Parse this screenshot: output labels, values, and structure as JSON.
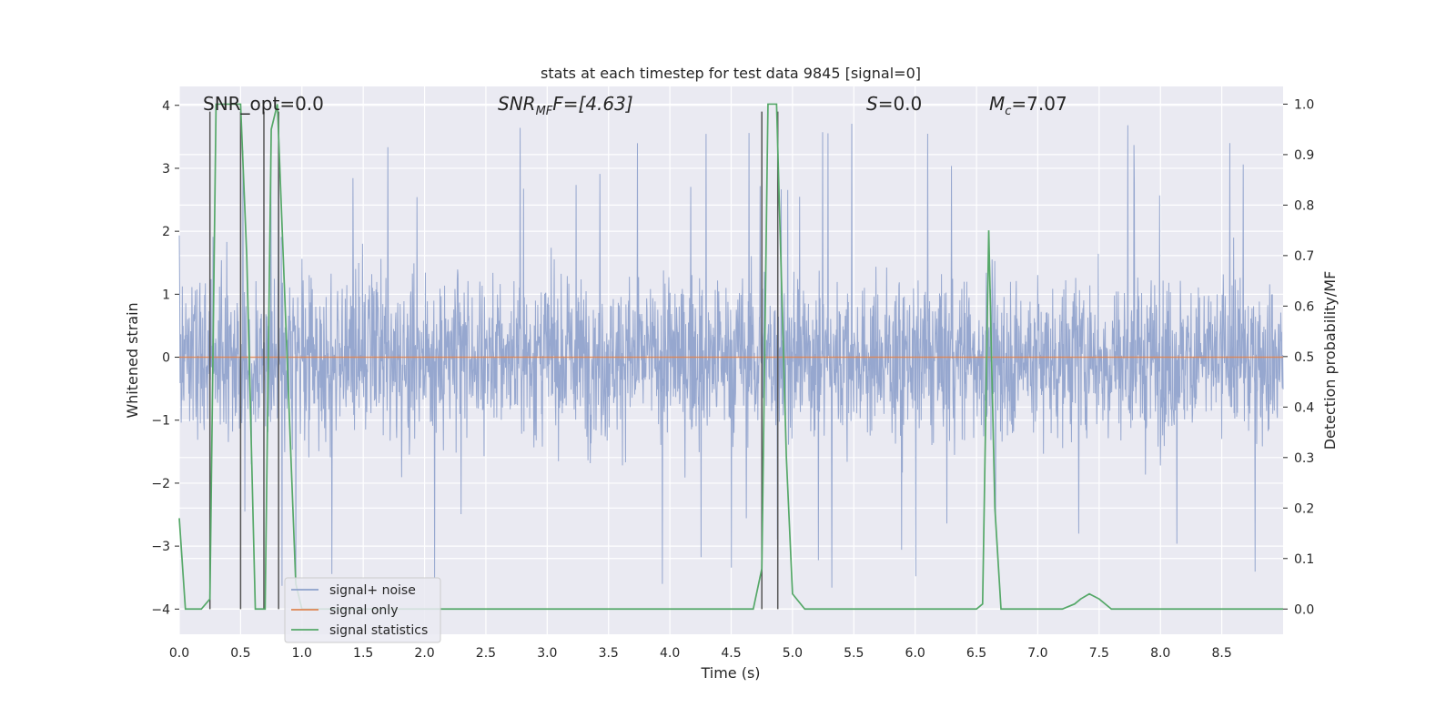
{
  "chart_data": {
    "type": "line",
    "title": "stats at each timestep for test data 9845 [signal=0]",
    "xlabel": "Time (s)",
    "ylabel": "Whitened strain",
    "ylabel_right": "Detection probability/MF",
    "xlim": [
      0.0,
      9.0
    ],
    "ylim": [
      -4.4,
      4.3
    ],
    "ylim_right": [
      -0.05,
      1.035
    ],
    "xticks": [
      0.0,
      0.5,
      1.0,
      1.5,
      2.0,
      2.5,
      3.0,
      3.5,
      4.0,
      4.5,
      5.0,
      5.5,
      6.0,
      6.5,
      7.0,
      7.5,
      8.0,
      8.5
    ],
    "xtick_labels": [
      "0.0",
      "0.5",
      "1.0",
      "1.5",
      "2.0",
      "2.5",
      "3.0",
      "3.5",
      "4.0",
      "4.5",
      "5.0",
      "5.5",
      "6.0",
      "6.5",
      "7.0",
      "7.5",
      "8.0",
      "8.5"
    ],
    "yticks": [
      -4,
      -3,
      -2,
      -1,
      0,
      1,
      2,
      3,
      4
    ],
    "ytick_labels": [
      "−4",
      "−3",
      "−2",
      "−1",
      "0",
      "1",
      "2",
      "3",
      "4"
    ],
    "yticks_right": [
      0.0,
      0.1,
      0.2,
      0.3,
      0.4,
      0.5,
      0.6,
      0.7,
      0.8,
      0.9,
      1.0
    ],
    "ytick_labels_right": [
      "0.0",
      "0.1",
      "0.2",
      "0.3",
      "0.4",
      "0.5",
      "0.6",
      "0.7",
      "0.8",
      "0.9",
      "1.0"
    ],
    "annotations": {
      "snr_opt": "SNR_opt=0.0",
      "snr_mf_name": "SNR",
      "snr_mf_sub": "MF",
      "snr_mf_rest": "F=[4.63]",
      "s_name": "S",
      "s_rest": "=0.0",
      "mc_name": "M",
      "mc_sub": "c",
      "mc_rest": "=7.07"
    },
    "legend": {
      "position": "lower-left",
      "entries": [
        "signal+ noise",
        "signal only",
        "signal statistics"
      ]
    },
    "colors": {
      "noise": "#8da0cb",
      "signal_only": "#dd8452",
      "statistics": "#55a868",
      "vlines": "#555555",
      "background": "#eaeaf2",
      "grid": "#ffffff"
    },
    "series": [
      {
        "name": "signal+ noise",
        "noise_profile": {
          "duration": 9.0,
          "sample_count": 2880,
          "envelope": 1.55,
          "peak_max": 3.9,
          "peak_min": -4.0
        }
      },
      {
        "name": "signal only",
        "x": [
          0.0,
          9.0
        ],
        "y": [
          0.0,
          0.0
        ]
      },
      {
        "name": "signal statistics",
        "x": [
          0.0,
          0.05,
          0.18,
          0.25,
          0.3,
          0.5,
          0.55,
          0.62,
          0.7,
          0.75,
          0.8,
          0.95,
          1.0,
          1.5,
          2.0,
          2.5,
          3.0,
          3.5,
          3.75,
          4.0,
          4.5,
          4.68,
          4.75,
          4.8,
          4.87,
          4.95,
          5.0,
          5.1,
          5.3,
          6.0,
          6.5,
          6.55,
          6.6,
          6.65,
          6.7,
          6.8,
          7.0,
          7.2,
          7.3,
          7.35,
          7.42,
          7.5,
          7.6,
          7.8,
          8.0,
          8.5,
          8.8,
          9.0
        ],
        "y": [
          0.18,
          0.0,
          0.0,
          0.02,
          1.0,
          1.0,
          0.7,
          0.0,
          0.0,
          0.95,
          1.0,
          0.05,
          0.0,
          0.0,
          0.0,
          0.0,
          0.0,
          0.0,
          0.0,
          0.0,
          0.0,
          0.0,
          0.08,
          1.0,
          1.0,
          0.3,
          0.03,
          0.0,
          0.0,
          0.0,
          0.0,
          0.01,
          0.75,
          0.2,
          0.0,
          0.0,
          0.0,
          0.0,
          0.01,
          0.02,
          0.03,
          0.02,
          0.0,
          0.0,
          0.0,
          0.0,
          0.0,
          0.0
        ]
      }
    ],
    "vertical_lines": [
      {
        "x": 0.25,
        "y_top": 3.9,
        "y_bottom": -4.0
      },
      {
        "x": 0.5,
        "y_top": 3.9,
        "y_bottom": -4.0
      },
      {
        "x": 0.69,
        "y_top": 3.9,
        "y_bottom": -4.0
      },
      {
        "x": 0.81,
        "y_top": 3.9,
        "y_bottom": -4.0
      },
      {
        "x": 4.75,
        "y_top": 3.9,
        "y_bottom": -4.0
      },
      {
        "x": 4.88,
        "y_top": 3.9,
        "y_bottom": -4.0
      }
    ]
  }
}
